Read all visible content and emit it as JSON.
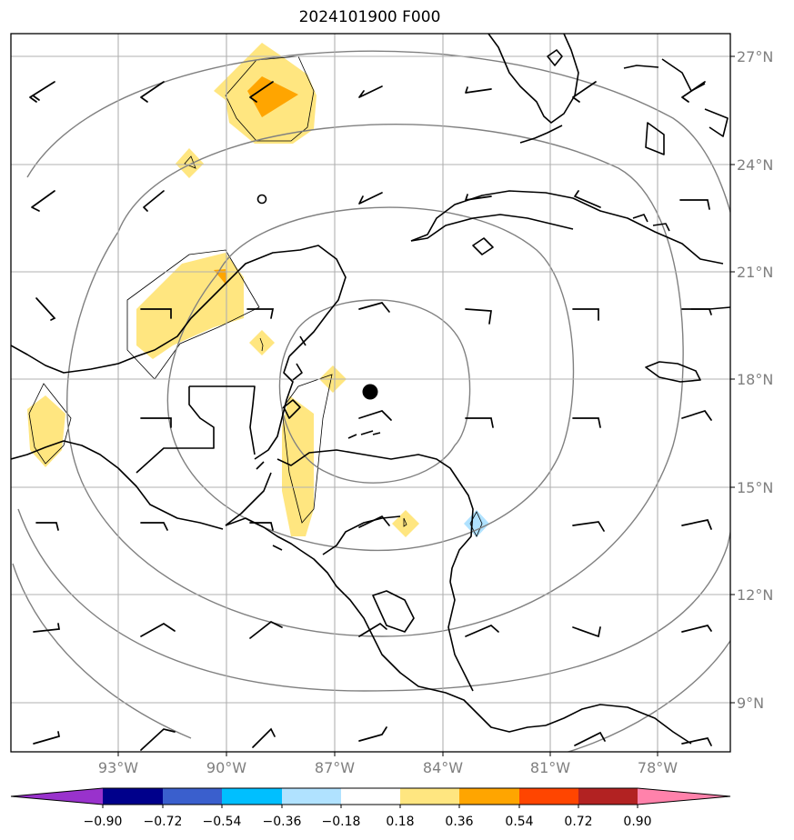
{
  "title": "2024101900 F000",
  "axes": {
    "lon_labels": [
      "93°W",
      "90°W",
      "87°W",
      "84°W",
      "81°W",
      "78°W"
    ],
    "lat_labels": [
      "27°N",
      "24°N",
      "21°N",
      "18°N",
      "15°N",
      "12°N",
      "9°N"
    ]
  },
  "colorbar": {
    "labels": [
      "−0.90",
      "−0.72",
      "−0.54",
      "−0.36",
      "−0.18",
      "0.18",
      "0.36",
      "0.54",
      "0.72",
      "0.90"
    ],
    "colors": [
      "#9932cc",
      "#00008b",
      "#3a5fcd",
      "#00bfff",
      "#b0e2ff",
      "#ffffff",
      "#ffe680",
      "#ffa500",
      "#ff4500",
      "#b22222",
      "#ff82ab"
    ]
  },
  "storm_center": {
    "lon": -85.9,
    "lat": 17.6
  }
}
